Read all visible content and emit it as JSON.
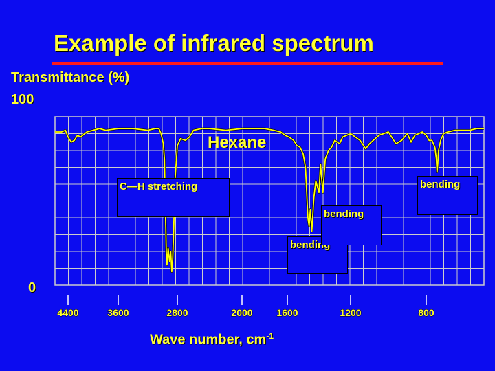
{
  "slide": {
    "title": "Example of infrared spectrum",
    "ylabel": "Transmittance (%)",
    "xlabel": "Wave number, cm",
    "xlabel_sup": "-1",
    "accent_colors": {
      "background": "#0c0cf0",
      "text": "#ffff33",
      "rule": "#ff1a1a",
      "grid": "#cccccc",
      "trace": "#ffff00"
    }
  },
  "annotations": {
    "compound": "Hexane",
    "ch_stretch": "C—H stretching",
    "bend_left": "bending",
    "bend_mid": "bending",
    "bend_right": "bending"
  },
  "chart_data": {
    "type": "line",
    "title": "Example of infrared spectrum",
    "xlabel": "Wave number, cm-1",
    "ylabel": "Transmittance (%)",
    "xlim": [
      4600,
      400
    ],
    "ylim": [
      0,
      100
    ],
    "y_ticks": [
      "0",
      "100"
    ],
    "x_ticks": [
      4400,
      3600,
      2800,
      2000,
      1600,
      1200,
      800
    ],
    "x_tick_labels": [
      "4400",
      "3600",
      "2800",
      "2000",
      "1600",
      "1200",
      "800"
    ],
    "grid": true,
    "series": [
      {
        "x": [
          4600,
          4500,
          4440,
          4400,
          4350,
          4300,
          4250,
          4200,
          4100,
          4000,
          3900,
          3800,
          3600,
          3400,
          3200,
          3100,
          3050,
          3020,
          2990,
          2975,
          2962,
          2950,
          2940,
          2925,
          2905,
          2890,
          2875,
          2862,
          2850,
          2835,
          2800,
          2760,
          2700,
          2650,
          2600,
          2500,
          2400,
          2200,
          2000,
          1800,
          1720,
          1660,
          1620,
          1590,
          1560,
          1540,
          1520,
          1500,
          1485,
          1470,
          1462,
          1455,
          1445,
          1432,
          1420,
          1400,
          1390,
          1380,
          1375,
          1370,
          1360,
          1340,
          1320,
          1300,
          1270,
          1250,
          1200,
          1150,
          1120,
          1100,
          1080,
          1050,
          1000,
          960,
          930,
          900,
          880,
          860,
          820,
          800,
          780,
          760,
          740,
          730,
          725,
          720,
          715,
          700,
          680,
          650,
          600,
          550,
          500,
          450,
          400
        ],
        "y": [
          91,
          91,
          92,
          88,
          85,
          86,
          89,
          88,
          91,
          92,
          93,
          92,
          93,
          93,
          92,
          93,
          93,
          90,
          84,
          75,
          45,
          20,
          12,
          22,
          14,
          20,
          8,
          16,
          32,
          60,
          83,
          87,
          86,
          88,
          92,
          93,
          93,
          92,
          93,
          93,
          92,
          91,
          89,
          88,
          86,
          83,
          82,
          78,
          70,
          40,
          35,
          45,
          32,
          52,
          62,
          55,
          72,
          60,
          55,
          62,
          75,
          80,
          82,
          86,
          84,
          88,
          90,
          86,
          81,
          84,
          86,
          89,
          91,
          84,
          86,
          90,
          85,
          89,
          91,
          89,
          86,
          86,
          82,
          75,
          67,
          72,
          80,
          86,
          90,
          91,
          92,
          92,
          92,
          93,
          93
        ]
      }
    ]
  }
}
